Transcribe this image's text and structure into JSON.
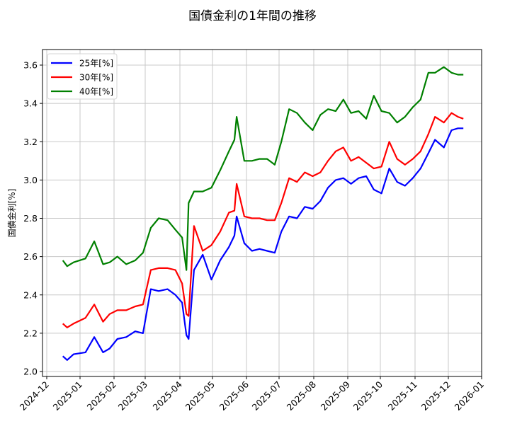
{
  "chart_data": {
    "type": "line",
    "title": "国債金利の1年間の推移",
    "xlabel": "",
    "ylabel": "国債金利[%]",
    "ylim": [
      1.975,
      3.68
    ],
    "yticks": [
      "2.0",
      "2.2",
      "2.4",
      "2.6",
      "2.8",
      "3.0",
      "3.2",
      "3.4",
      "3.6"
    ],
    "xticks": [
      "2024-12",
      "2025-01",
      "2025-02",
      "2025-03",
      "2025-04",
      "2025-05",
      "2025-06",
      "2025-07",
      "2025-08",
      "2025-09",
      "2025-10",
      "2025-11",
      "2025-12",
      "2026-01"
    ],
    "grid": true,
    "legend_position": "upper left",
    "x": [
      "2024-12-16",
      "2024-12-20",
      "2024-12-26",
      "2025-01-06",
      "2025-01-14",
      "2025-01-22",
      "2025-01-28",
      "2025-02-04",
      "2025-02-12",
      "2025-02-20",
      "2025-02-27",
      "2025-03-06",
      "2025-03-13",
      "2025-03-21",
      "2025-03-28",
      "2025-04-03",
      "2025-04-07",
      "2025-04-09",
      "2025-04-14",
      "2025-04-22",
      "2025-04-30",
      "2025-05-08",
      "2025-05-16",
      "2025-05-21",
      "2025-05-23",
      "2025-05-30",
      "2025-06-06",
      "2025-06-13",
      "2025-06-20",
      "2025-06-27",
      "2025-07-03",
      "2025-07-10",
      "2025-07-17",
      "2025-07-24",
      "2025-07-31",
      "2025-08-07",
      "2025-08-14",
      "2025-08-21",
      "2025-08-28",
      "2025-09-04",
      "2025-09-11",
      "2025-09-18",
      "2025-09-25",
      "2025-10-02",
      "2025-10-09",
      "2025-10-16",
      "2025-10-23",
      "2025-10-30",
      "2025-11-06",
      "2025-11-13",
      "2025-11-19",
      "2025-11-27",
      "2025-12-04",
      "2025-12-10",
      "2025-12-15"
    ],
    "series": [
      {
        "name": "25年[%]",
        "color": "#0000ff",
        "values": [
          2.08,
          2.06,
          2.09,
          2.1,
          2.18,
          2.1,
          2.12,
          2.17,
          2.18,
          2.21,
          2.2,
          2.43,
          2.42,
          2.43,
          2.4,
          2.36,
          2.19,
          2.17,
          2.53,
          2.61,
          2.48,
          2.58,
          2.65,
          2.71,
          2.81,
          2.67,
          2.63,
          2.64,
          2.63,
          2.62,
          2.73,
          2.81,
          2.8,
          2.86,
          2.85,
          2.89,
          2.96,
          3.0,
          3.01,
          2.98,
          3.01,
          3.02,
          2.95,
          2.93,
          3.06,
          2.99,
          2.97,
          3.01,
          3.06,
          3.14,
          3.21,
          3.17,
          3.26,
          3.27,
          3.27
        ]
      },
      {
        "name": "30年[%]",
        "color": "#ff0000",
        "values": [
          2.25,
          2.23,
          2.25,
          2.28,
          2.35,
          2.26,
          2.3,
          2.32,
          2.32,
          2.34,
          2.35,
          2.53,
          2.54,
          2.54,
          2.53,
          2.46,
          2.3,
          2.29,
          2.76,
          2.63,
          2.66,
          2.73,
          2.83,
          2.84,
          2.98,
          2.81,
          2.8,
          2.8,
          2.79,
          2.79,
          2.88,
          3.01,
          2.99,
          3.04,
          3.02,
          3.04,
          3.1,
          3.15,
          3.17,
          3.1,
          3.12,
          3.09,
          3.06,
          3.07,
          3.2,
          3.11,
          3.08,
          3.11,
          3.15,
          3.24,
          3.33,
          3.3,
          3.35,
          3.33,
          3.32
        ]
      },
      {
        "name": "40年[%]",
        "color": "#008000",
        "values": [
          2.58,
          2.55,
          2.57,
          2.59,
          2.68,
          2.56,
          2.57,
          2.6,
          2.56,
          2.58,
          2.62,
          2.75,
          2.8,
          2.79,
          2.74,
          2.7,
          2.53,
          2.88,
          2.94,
          2.94,
          2.96,
          3.05,
          3.15,
          3.21,
          3.33,
          3.1,
          3.1,
          3.11,
          3.11,
          3.08,
          3.2,
          3.37,
          3.35,
          3.3,
          3.26,
          3.34,
          3.37,
          3.36,
          3.42,
          3.35,
          3.36,
          3.32,
          3.44,
          3.36,
          3.35,
          3.3,
          3.33,
          3.38,
          3.42,
          3.56,
          3.56,
          3.59,
          3.56,
          3.55,
          3.55
        ]
      }
    ]
  }
}
